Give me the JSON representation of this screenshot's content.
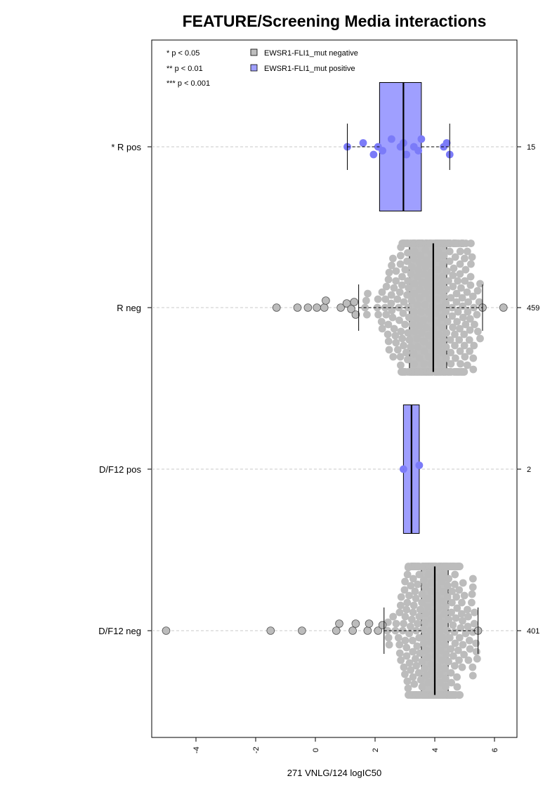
{
  "chart_data": {
    "type": "beeswarm-boxplot",
    "orientation": "horizontal",
    "title": "FEATURE/Screening Media interactions",
    "xlabel": "271 VNLG/124 logIC50",
    "xlim": [
      -5.4,
      6.8
    ],
    "x_ticks": [
      -4,
      -2,
      0,
      2,
      4,
      6
    ],
    "x_tick_labels": [
      "-4",
      "-2",
      "0",
      "2",
      "4",
      "6"
    ],
    "grid": "dashed horizontal line per group",
    "legend": {
      "placement": "top-left",
      "significance": [
        "* p < 0.05",
        "** p < 0.01",
        "*** p < 0.001"
      ],
      "entries": [
        {
          "label": "EWSR1-FLI1_mut negative",
          "color": "#bebebe"
        },
        {
          "label": "EWSR1-FLI1_mut positive",
          "color": "#9f9fff"
        }
      ]
    },
    "colors": {
      "negative_box": "#bebebe",
      "positive_box": "#9f9fff",
      "negative_point": "#bcbcbc",
      "positive_point": "#7b7bf8",
      "grid": "#c8c8c8"
    },
    "groups": [
      {
        "label": "* R pos",
        "n": "15",
        "mutation": "positive",
        "box": {
          "whisker_low": 1.07,
          "q1": 2.15,
          "median": 2.95,
          "q3": 3.55,
          "whisker_high": 4.5
        },
        "points": [
          1.07,
          1.6,
          1.95,
          2.1,
          2.25,
          2.55,
          2.85,
          2.95,
          3.05,
          3.3,
          3.45,
          3.55,
          4.3,
          4.4,
          4.5
        ]
      },
      {
        "label": "R neg",
        "n": "459",
        "mutation": "negative",
        "box": {
          "whisker_low": 1.45,
          "q1": 3.15,
          "median": 3.95,
          "q3": 4.4,
          "whisker_high": 5.6
        },
        "outliers": [
          -1.3,
          -0.6,
          -0.25,
          0.05,
          0.3,
          0.35,
          0.85,
          1.05,
          1.2,
          1.3,
          1.35,
          5.6,
          6.3
        ],
        "distribution": {
          "min": 1.45,
          "max": 5.6,
          "center": 3.9,
          "sd": 0.85,
          "count": 446
        }
      },
      {
        "label": "D/F12 pos",
        "n": "2",
        "mutation": "positive",
        "box": {
          "whisker_low": 2.95,
          "q1": 2.95,
          "median": 3.22,
          "q3": 3.48,
          "whisker_high": 3.48
        },
        "points": [
          2.95,
          3.48
        ]
      },
      {
        "label": "D/F12 neg",
        "n": "401",
        "mutation": "negative",
        "box": {
          "whisker_low": 2.3,
          "q1": 3.55,
          "median": 4.0,
          "q3": 4.45,
          "whisker_high": 5.45
        },
        "outliers": [
          -5.0,
          -1.5,
          -0.45,
          0.7,
          0.8,
          1.25,
          1.35,
          1.75,
          1.8,
          2.1,
          2.25,
          5.45
        ],
        "distribution": {
          "min": 2.3,
          "max": 5.45,
          "center": 4.0,
          "sd": 0.7,
          "count": 389
        }
      }
    ]
  }
}
